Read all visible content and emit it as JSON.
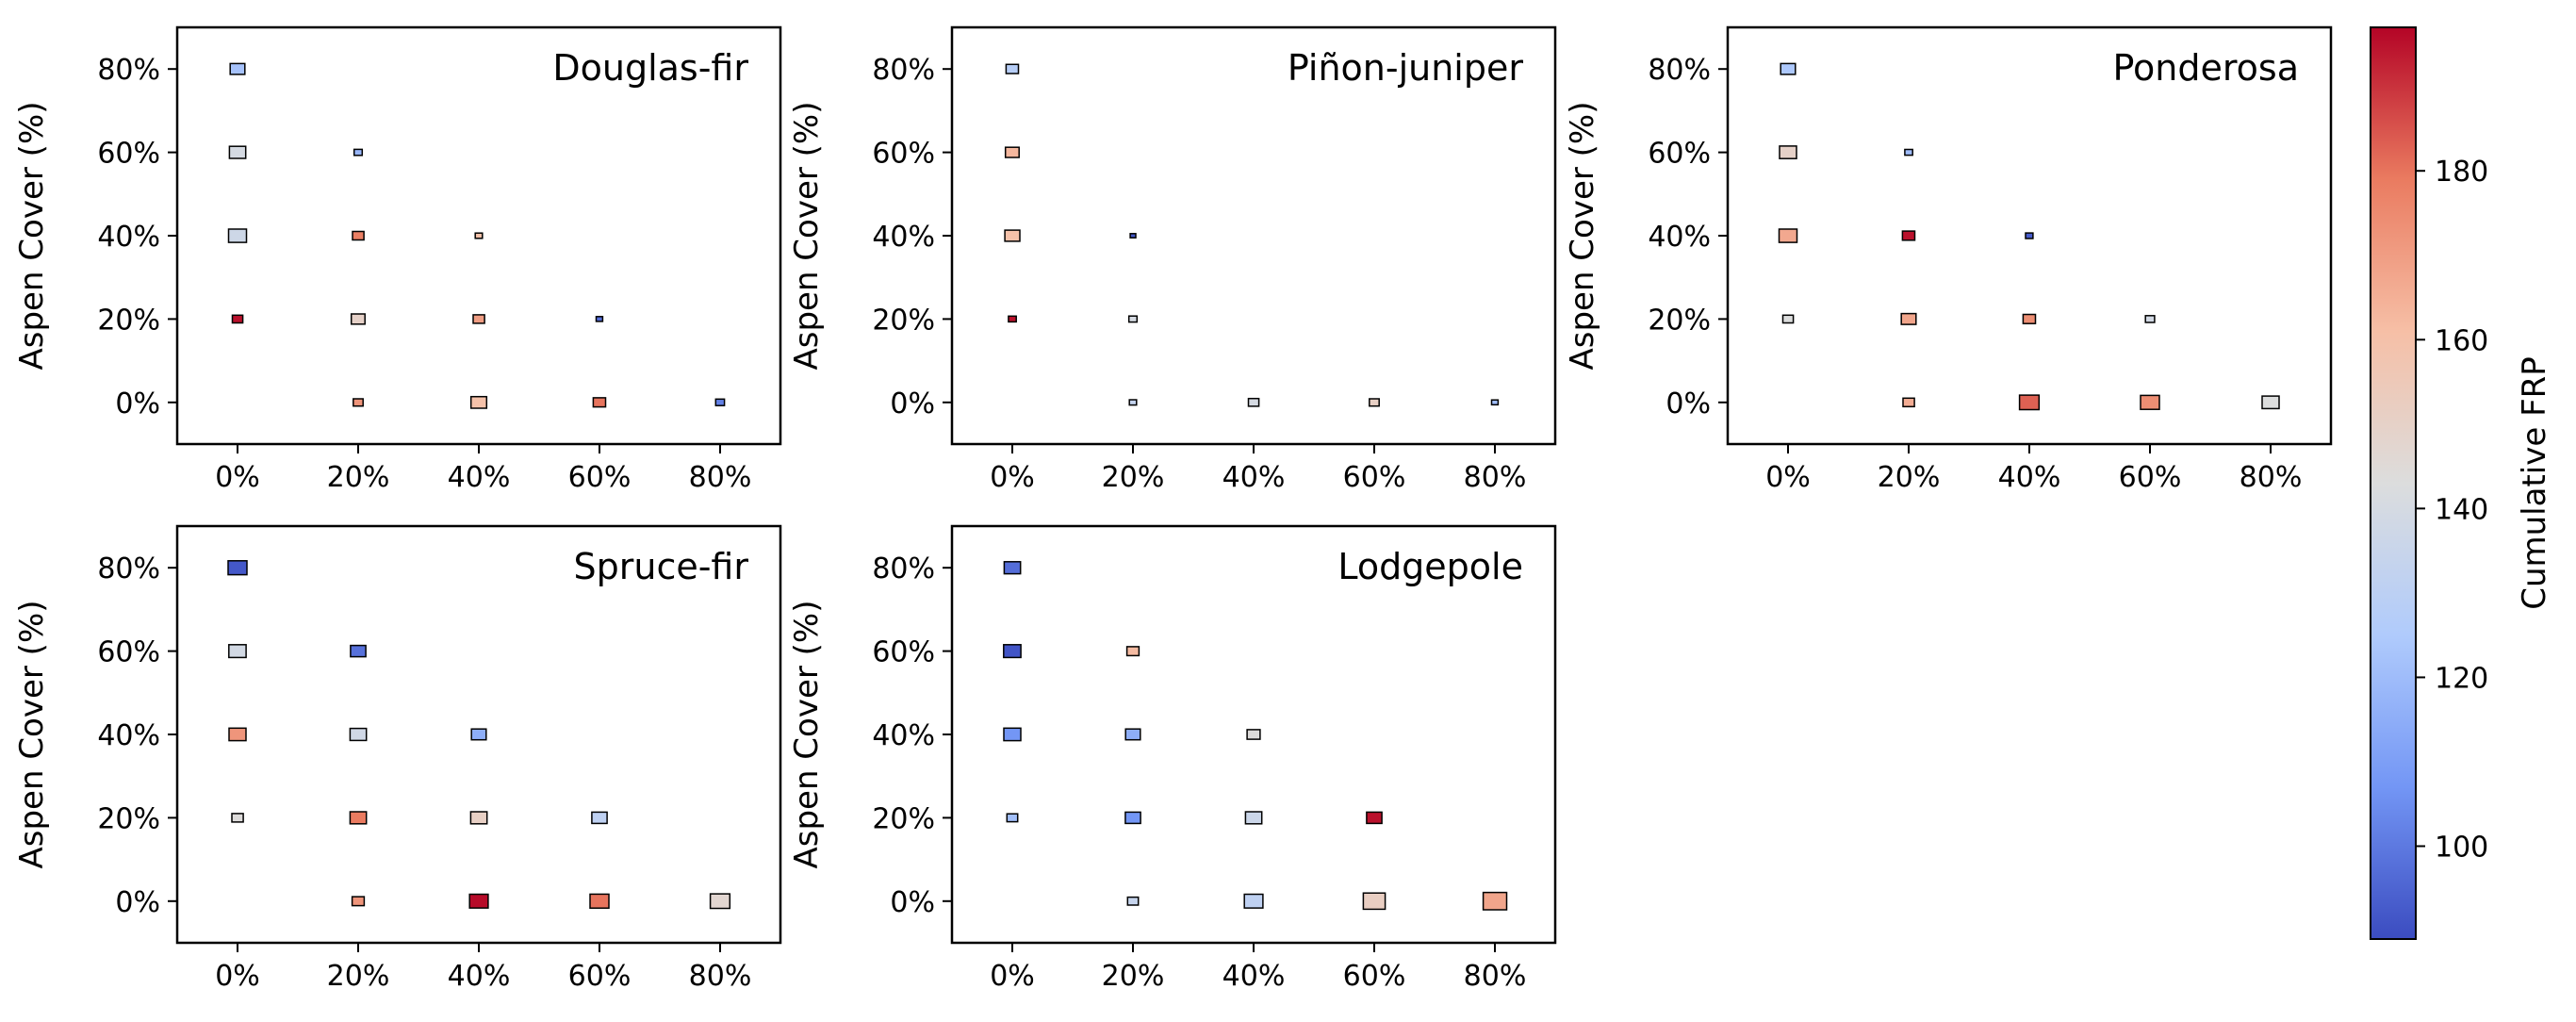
{
  "figure": {
    "ylabel": "Aspen Cover (%)",
    "colorbar_label": "Cumulative FRP",
    "colorbar_ticks": [
      {
        "value": 100,
        "label": "100"
      },
      {
        "value": 120,
        "label": "120"
      },
      {
        "value": 140,
        "label": "140"
      },
      {
        "value": 160,
        "label": "160"
      },
      {
        "value": 180,
        "label": "180"
      }
    ],
    "colorbar_range": [
      89,
      197
    ],
    "colormap": "coolwarm",
    "colormap_stops": [
      "#3b4cc0",
      "#7396f5",
      "#b0cbfc",
      "#dcdddd",
      "#f6bfa6",
      "#ea7b60",
      "#b40426"
    ]
  },
  "chart_data": [
    {
      "type": "heatmap",
      "title": "Douglas-fir",
      "xlabel": "",
      "ylabel": "Aspen Cover (%)",
      "x_ticks": [
        "0%",
        "20%",
        "40%",
        "60%",
        "80%"
      ],
      "y_ticks": [
        "0%",
        "20%",
        "40%",
        "60%",
        "80%"
      ],
      "xlim": [
        -10,
        90
      ],
      "ylim": [
        -10,
        90
      ],
      "cells": [
        {
          "x": 0,
          "y": 80,
          "frp": 122,
          "size": 0.45
        },
        {
          "x": 0,
          "y": 60,
          "frp": 140,
          "size": 0.5
        },
        {
          "x": 0,
          "y": 40,
          "frp": 137,
          "size": 0.55
        },
        {
          "x": 0,
          "y": 20,
          "frp": 195,
          "size": 0.32
        },
        {
          "x": 20,
          "y": 60,
          "frp": 118,
          "size": 0.25
        },
        {
          "x": 20,
          "y": 40,
          "frp": 178,
          "size": 0.35
        },
        {
          "x": 20,
          "y": 20,
          "frp": 150,
          "size": 0.42
        },
        {
          "x": 20,
          "y": 0,
          "frp": 172,
          "size": 0.3
        },
        {
          "x": 40,
          "y": 40,
          "frp": 160,
          "size": 0.22
        },
        {
          "x": 40,
          "y": 20,
          "frp": 170,
          "size": 0.35
        },
        {
          "x": 40,
          "y": 0,
          "frp": 160,
          "size": 0.48
        },
        {
          "x": 60,
          "y": 20,
          "frp": 97,
          "size": 0.2
        },
        {
          "x": 60,
          "y": 0,
          "frp": 180,
          "size": 0.38
        },
        {
          "x": 80,
          "y": 0,
          "frp": 102,
          "size": 0.27
        }
      ]
    },
    {
      "type": "heatmap",
      "title": "Piñon-juniper",
      "xlabel": "",
      "ylabel": "Aspen Cover (%)",
      "x_ticks": [
        "0%",
        "20%",
        "40%",
        "60%",
        "80%"
      ],
      "y_ticks": [
        "0%",
        "20%",
        "40%",
        "60%",
        "80%"
      ],
      "xlim": [
        -10,
        90
      ],
      "ylim": [
        -10,
        90
      ],
      "cells": [
        {
          "x": 0,
          "y": 80,
          "frp": 128,
          "size": 0.38
        },
        {
          "x": 0,
          "y": 60,
          "frp": 163,
          "size": 0.42
        },
        {
          "x": 0,
          "y": 40,
          "frp": 160,
          "size": 0.46
        },
        {
          "x": 0,
          "y": 20,
          "frp": 195,
          "size": 0.24
        },
        {
          "x": 20,
          "y": 40,
          "frp": 92,
          "size": 0.17
        },
        {
          "x": 20,
          "y": 20,
          "frp": 140,
          "size": 0.25
        },
        {
          "x": 20,
          "y": 0,
          "frp": 133,
          "size": 0.22
        },
        {
          "x": 40,
          "y": 0,
          "frp": 140,
          "size": 0.32
        },
        {
          "x": 60,
          "y": 0,
          "frp": 151,
          "size": 0.3
        },
        {
          "x": 80,
          "y": 0,
          "frp": 120,
          "size": 0.2
        }
      ]
    },
    {
      "type": "heatmap",
      "title": "Ponderosa",
      "xlabel": "",
      "ylabel": "Aspen Cover (%)",
      "x_ticks": [
        "0%",
        "20%",
        "40%",
        "60%",
        "80%"
      ],
      "y_ticks": [
        "0%",
        "20%",
        "40%",
        "60%",
        "80%"
      ],
      "xlim": [
        -10,
        90
      ],
      "ylim": [
        -10,
        90
      ],
      "cells": [
        {
          "x": 0,
          "y": 80,
          "frp": 124,
          "size": 0.45
        },
        {
          "x": 0,
          "y": 60,
          "frp": 150,
          "size": 0.52
        },
        {
          "x": 0,
          "y": 40,
          "frp": 167,
          "size": 0.55
        },
        {
          "x": 0,
          "y": 20,
          "frp": 143,
          "size": 0.32
        },
        {
          "x": 20,
          "y": 60,
          "frp": 120,
          "size": 0.24
        },
        {
          "x": 20,
          "y": 40,
          "frp": 195,
          "size": 0.38
        },
        {
          "x": 20,
          "y": 20,
          "frp": 168,
          "size": 0.45
        },
        {
          "x": 20,
          "y": 0,
          "frp": 166,
          "size": 0.35
        },
        {
          "x": 40,
          "y": 40,
          "frp": 93,
          "size": 0.23
        },
        {
          "x": 40,
          "y": 20,
          "frp": 174,
          "size": 0.38
        },
        {
          "x": 40,
          "y": 0,
          "frp": 183,
          "size": 0.6
        },
        {
          "x": 60,
          "y": 20,
          "frp": 139,
          "size": 0.28
        },
        {
          "x": 60,
          "y": 0,
          "frp": 174,
          "size": 0.58
        },
        {
          "x": 80,
          "y": 0,
          "frp": 143,
          "size": 0.52
        }
      ]
    },
    {
      "type": "heatmap",
      "title": "Spruce-fir",
      "xlabel": "",
      "ylabel": "Aspen Cover (%)",
      "x_ticks": [
        "0%",
        "20%",
        "40%",
        "60%",
        "80%"
      ],
      "y_ticks": [
        "0%",
        "20%",
        "40%",
        "60%",
        "80%"
      ],
      "xlim": [
        -10,
        90
      ],
      "ylim": [
        -10,
        90
      ],
      "cells": [
        {
          "x": 0,
          "y": 80,
          "frp": 92,
          "size": 0.58
        },
        {
          "x": 0,
          "y": 60,
          "frp": 139,
          "size": 0.53
        },
        {
          "x": 0,
          "y": 40,
          "frp": 172,
          "size": 0.52
        },
        {
          "x": 0,
          "y": 20,
          "frp": 144,
          "size": 0.35
        },
        {
          "x": 20,
          "y": 60,
          "frp": 98,
          "size": 0.47
        },
        {
          "x": 20,
          "y": 40,
          "frp": 138,
          "size": 0.5
        },
        {
          "x": 20,
          "y": 20,
          "frp": 179,
          "size": 0.5
        },
        {
          "x": 20,
          "y": 0,
          "frp": 172,
          "size": 0.37
        },
        {
          "x": 40,
          "y": 40,
          "frp": 115,
          "size": 0.45
        },
        {
          "x": 40,
          "y": 20,
          "frp": 151,
          "size": 0.5
        },
        {
          "x": 40,
          "y": 0,
          "frp": 196,
          "size": 0.57
        },
        {
          "x": 60,
          "y": 20,
          "frp": 131,
          "size": 0.47
        },
        {
          "x": 60,
          "y": 0,
          "frp": 180,
          "size": 0.58
        },
        {
          "x": 80,
          "y": 0,
          "frp": 147,
          "size": 0.6
        }
      ]
    },
    {
      "type": "heatmap",
      "title": "Lodgepole",
      "xlabel": "",
      "ylabel": "Aspen Cover (%)",
      "x_ticks": [
        "0%",
        "20%",
        "40%",
        "60%",
        "80%"
      ],
      "y_ticks": [
        "0%",
        "20%",
        "40%",
        "60%",
        "80%"
      ],
      "xlim": [
        -10,
        90
      ],
      "ylim": [
        -10,
        90
      ],
      "cells": [
        {
          "x": 0,
          "y": 80,
          "frp": 97,
          "size": 0.5
        },
        {
          "x": 0,
          "y": 60,
          "frp": 91,
          "size": 0.53
        },
        {
          "x": 0,
          "y": 40,
          "frp": 107,
          "size": 0.52
        },
        {
          "x": 0,
          "y": 20,
          "frp": 121,
          "size": 0.33
        },
        {
          "x": 20,
          "y": 60,
          "frp": 162,
          "size": 0.37
        },
        {
          "x": 20,
          "y": 40,
          "frp": 115,
          "size": 0.45
        },
        {
          "x": 20,
          "y": 20,
          "frp": 107,
          "size": 0.47
        },
        {
          "x": 20,
          "y": 0,
          "frp": 134,
          "size": 0.33
        },
        {
          "x": 40,
          "y": 40,
          "frp": 144,
          "size": 0.4
        },
        {
          "x": 40,
          "y": 20,
          "frp": 136,
          "size": 0.5
        },
        {
          "x": 40,
          "y": 0,
          "frp": 131,
          "size": 0.57
        },
        {
          "x": 60,
          "y": 20,
          "frp": 195,
          "size": 0.47
        },
        {
          "x": 60,
          "y": 0,
          "frp": 152,
          "size": 0.67
        },
        {
          "x": 80,
          "y": 0,
          "frp": 168,
          "size": 0.72
        }
      ]
    }
  ]
}
